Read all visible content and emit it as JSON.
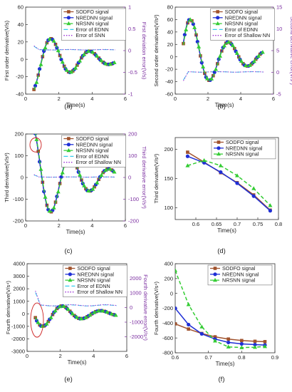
{
  "colors": {
    "sodfo": "#a0522d",
    "nrednn": "#1f2fd6",
    "nrsnn": "#33cc33",
    "error_ednn": "#33ccee",
    "error_snn": "#9b30d6",
    "right_axis": "#7b2ea0",
    "ellipse": "#cc2020"
  },
  "chart_data": [
    {
      "panel": "(a)",
      "type": "line",
      "xlabel": "Time(s)",
      "ylabel": "First order derivative(V/s)",
      "y2label": "First deviation error(V/s)",
      "xlim": [
        0,
        6
      ],
      "ylim": [
        -40,
        60
      ],
      "y2lim": [
        -1,
        1
      ],
      "xticks": [
        0,
        2,
        4,
        6
      ],
      "yticks": [
        -40,
        -20,
        0,
        20,
        40,
        60
      ],
      "y2ticks": [
        -1,
        -0.5,
        0,
        0.5,
        1
      ],
      "legend": [
        "SODFO signal",
        "NREDNN signal",
        "NRSNN signal",
        "Error of EDNN",
        "Error of SNN"
      ],
      "signal": {
        "t0": 0.5,
        "t1": 5.4,
        "f": 0.43,
        "tau": 2.5,
        "phase": -1.3,
        "amp": 36
      },
      "error": {
        "mode": "spike",
        "base": 0.02,
        "amp": 0.08
      }
    },
    {
      "panel": "(b)",
      "type": "line",
      "xlabel": "Time(s)",
      "ylabel": "Second order derivatives(V/s²)",
      "y2label": "Second derivative error(V/s²)",
      "xlim": [
        0,
        6
      ],
      "ylim": [
        -60,
        80
      ],
      "y2lim": [
        -5,
        15
      ],
      "xticks": [
        0,
        2,
        4,
        6
      ],
      "yticks": [
        -60,
        -40,
        -20,
        0,
        20,
        40,
        60,
        80
      ],
      "y2ticks": [
        -5,
        0,
        5,
        10,
        15
      ],
      "legend": [
        "SODFO signal",
        "NREDNN signal",
        "NRSNN signal",
        "Error of EDNN",
        "Error of Shallow NN"
      ],
      "signal": {
        "t0": 0.5,
        "t1": 5.4,
        "f": 0.43,
        "tau": 2.5,
        "phase": 0.3,
        "amp": 72
      },
      "error": {
        "mode": "dip",
        "base": 0.1,
        "amp": 2.0
      }
    },
    {
      "panel": "(c)",
      "type": "line",
      "xlabel": "Time(s)",
      "ylabel": "Third derivative(V/s³)",
      "y2label": "Third derivative error(V/s³)",
      "xlim": [
        0,
        6
      ],
      "ylim": [
        -200,
        200
      ],
      "y2lim": [
        -200,
        200
      ],
      "xticks": [
        0,
        2,
        4,
        6
      ],
      "yticks": [
        -200,
        -100,
        0,
        100,
        200
      ],
      "y2ticks": [
        -200,
        -100,
        0,
        100,
        200
      ],
      "legend": [
        "SODFO signal",
        "NREDNN signal",
        "NRSNN signal",
        "Error of EDNN",
        "Error of Shallow NN"
      ],
      "signal": {
        "t0": 0.5,
        "t1": 5.4,
        "f": 0.43,
        "tau": 2.5,
        "phase": 1.85,
        "amp": 240
      },
      "error": {
        "mode": "spike",
        "base": 2,
        "amp": 10
      }
    },
    {
      "panel": "(d)",
      "type": "line",
      "xlabel": "Time(s)",
      "ylabel": "Third derivative(V/s³)",
      "xlim": [
        0.55,
        0.8
      ],
      "ylim": [
        80,
        220
      ],
      "xticks": [
        0.6,
        0.65,
        0.7,
        0.75,
        0.8
      ],
      "yticks": [
        100,
        150,
        200
      ],
      "legend": [
        "SODFO signal",
        "NREDNN signal",
        "NRSNN signal"
      ],
      "x": [
        0.58,
        0.62,
        0.66,
        0.7,
        0.74,
        0.78
      ],
      "series": [
        {
          "name": "SODFO signal",
          "values": [
            195,
            178,
            160,
            143,
            122,
            96
          ]
        },
        {
          "name": "NREDNN signal",
          "values": [
            188,
            177,
            161,
            142,
            120,
            95
          ]
        },
        {
          "name": "NRSNN signal",
          "values": [
            172,
            181,
            172,
            155,
            133,
            104
          ]
        }
      ]
    },
    {
      "panel": "(e)",
      "type": "line",
      "xlabel": "Time(s)",
      "ylabel": "Fourth derivative(V/s⁴)",
      "y2label": "Fourth derivative error(V/s⁴)",
      "xlim": [
        0,
        6
      ],
      "ylim": [
        -3000,
        4000
      ],
      "y2lim": [
        -3000,
        3000
      ],
      "xticks": [
        0,
        2,
        4,
        6
      ],
      "yticks": [
        -3000,
        -2000,
        -1000,
        0,
        1000,
        2000,
        3000,
        4000
      ],
      "y2ticks": [
        -2000,
        -1000,
        0,
        1000,
        2000
      ],
      "legend": [
        "SODFO signal",
        "NREDNN signal",
        "NRSNN signal",
        "Error of EDNN",
        "Error of Shallow NN"
      ],
      "signal": {
        "t0": 0.5,
        "t1": 5.4,
        "f": 0.43,
        "tau": 2.5,
        "phase": 3.4,
        "amp": 1200
      },
      "error": {
        "mode": "spike",
        "base": 150,
        "amp": 900
      }
    },
    {
      "panel": "(f)",
      "type": "line",
      "xlabel": "Time(s)",
      "ylabel": "Fourth derivative(V/s⁴)",
      "xlim": [
        0.6,
        0.9
      ],
      "ylim": [
        -800,
        400
      ],
      "xticks": [
        0.6,
        0.7,
        0.8,
        0.9
      ],
      "yticks": [
        -800,
        -600,
        -400,
        -200,
        0,
        200,
        400
      ],
      "legend": [
        "SODFO signal",
        "NREDNN signal",
        "NRSNN signal"
      ],
      "x": [
        0.6,
        0.64,
        0.68,
        0.72,
        0.76,
        0.8,
        0.84,
        0.87
      ],
      "series": [
        {
          "name": "SODFO signal",
          "values": [
            -410,
            -480,
            -540,
            -585,
            -615,
            -635,
            -645,
            -650
          ]
        },
        {
          "name": "NREDNN signal",
          "values": [
            -200,
            -420,
            -545,
            -615,
            -660,
            -680,
            -690,
            -695
          ]
        },
        {
          "name": "NRSNN signal",
          "values": [
            310,
            -150,
            -450,
            -640,
            -720,
            -730,
            -725,
            -715
          ]
        }
      ]
    }
  ]
}
